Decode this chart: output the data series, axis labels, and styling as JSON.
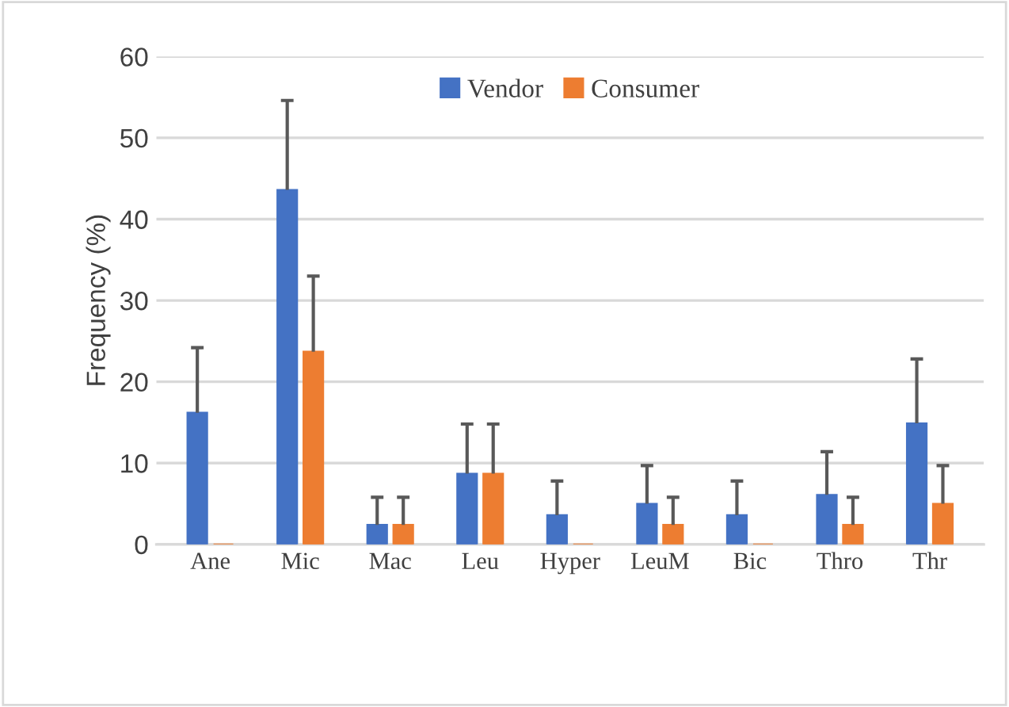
{
  "chart_data": {
    "type": "bar",
    "ylabel": "Frequency (%)",
    "categories": [
      "Ane",
      "Mic",
      "Mac",
      "Leu",
      "Hyper",
      "LeuM",
      "Bic",
      "Thro",
      "Thr"
    ],
    "series": [
      {
        "name": "Vendor",
        "color": "#4472c4",
        "values": [
          16.2,
          43.6,
          2.4,
          8.7,
          3.6,
          5.0,
          3.6,
          6.1,
          14.9
        ],
        "errors": [
          [
            16.2,
            24.2
          ],
          [
            43.6,
            54.6
          ],
          [
            2.4,
            5.8
          ],
          [
            8.7,
            14.8
          ],
          [
            3.6,
            7.8
          ],
          [
            5.0,
            9.7
          ],
          [
            3.6,
            7.8
          ],
          [
            6.1,
            11.4
          ],
          [
            14.9,
            22.8
          ]
        ]
      },
      {
        "name": "Consumer",
        "color": "#ed7d31",
        "values": [
          0,
          23.7,
          2.4,
          8.7,
          0,
          2.4,
          0,
          2.4,
          5.0
        ],
        "errors": [
          null,
          [
            23.7,
            33.0
          ],
          [
            2.4,
            5.8
          ],
          [
            8.7,
            14.8
          ],
          null,
          [
            2.4,
            5.8
          ],
          null,
          [
            2.4,
            5.8
          ],
          [
            5.0,
            9.7
          ]
        ]
      }
    ],
    "ylim": [
      0,
      60
    ],
    "yticks": [
      0,
      10,
      20,
      30,
      40,
      50,
      60
    ],
    "grid": "y",
    "legend": "top"
  }
}
